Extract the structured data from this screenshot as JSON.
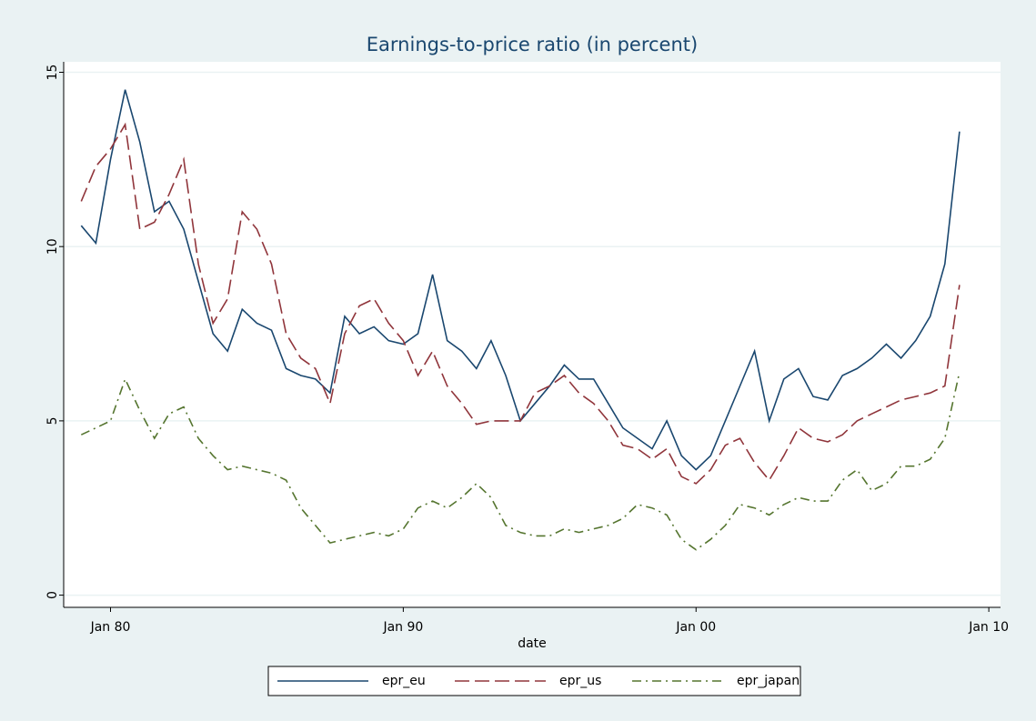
{
  "chart_data": {
    "type": "line",
    "title": "Earnings-to-price ratio (in percent)",
    "x_label": "date",
    "x": [
      1979,
      1979.5,
      1980,
      1980.5,
      1981,
      1981.5,
      1982,
      1982.5,
      1983,
      1983.5,
      1984,
      1984.5,
      1985,
      1985.5,
      1986,
      1986.5,
      1987,
      1987.5,
      1988,
      1988.5,
      1989,
      1989.5,
      1990,
      1990.5,
      1991,
      1991.5,
      1992,
      1992.5,
      1993,
      1993.5,
      1994,
      1994.5,
      1995,
      1995.5,
      1996,
      1996.5,
      1997,
      1997.5,
      1998,
      1998.5,
      1999,
      1999.5,
      2000,
      2000.5,
      2001,
      2001.5,
      2002,
      2002.5,
      2003,
      2003.5,
      2004,
      2004.5,
      2005,
      2005.5,
      2006,
      2006.5,
      2007,
      2007.5,
      2008,
      2008.5,
      2009
    ],
    "series": [
      {
        "name": "epr_eu",
        "color": "#1a476f",
        "style": "solid",
        "values": [
          10.6,
          10.1,
          12.5,
          14.5,
          13.0,
          11.0,
          11.3,
          10.5,
          9.0,
          7.5,
          7.0,
          8.2,
          7.8,
          7.6,
          6.5,
          6.3,
          6.2,
          5.8,
          8.0,
          7.5,
          7.7,
          7.3,
          7.2,
          7.5,
          9.2,
          7.3,
          7.0,
          6.5,
          7.3,
          6.3,
          5.0,
          5.5,
          6.0,
          6.6,
          6.2,
          6.2,
          5.5,
          4.8,
          4.5,
          4.2,
          5.0,
          4.0,
          3.6,
          4.0,
          5.0,
          6.0,
          7.0,
          5.0,
          6.2,
          6.5,
          5.7,
          5.6,
          6.3,
          6.5,
          6.8,
          7.2,
          6.8,
          7.3,
          8.0,
          9.5,
          13.3
        ]
      },
      {
        "name": "epr_us",
        "color": "#90353b",
        "style": "longdash",
        "values": [
          11.3,
          12.3,
          12.8,
          13.5,
          10.5,
          10.7,
          11.5,
          12.5,
          9.5,
          7.8,
          8.5,
          11.0,
          10.5,
          9.5,
          7.5,
          6.8,
          6.5,
          5.5,
          7.5,
          8.3,
          8.5,
          7.8,
          7.3,
          6.3,
          7.0,
          6.0,
          5.5,
          4.9,
          5.0,
          5.0,
          5.0,
          5.8,
          6.0,
          6.3,
          5.8,
          5.5,
          5.0,
          4.3,
          4.2,
          3.9,
          4.2,
          3.4,
          3.2,
          3.6,
          4.3,
          4.5,
          3.8,
          3.3,
          4.0,
          4.8,
          4.5,
          4.4,
          4.6,
          5.0,
          5.2,
          5.4,
          5.6,
          5.7,
          5.8,
          6.0,
          8.9
        ]
      },
      {
        "name": "epr_japan",
        "color": "#55752f",
        "style": "dashdot",
        "values": [
          4.6,
          4.8,
          5.0,
          6.2,
          5.3,
          4.5,
          5.2,
          5.4,
          4.5,
          4.0,
          3.6,
          3.7,
          3.6,
          3.5,
          3.3,
          2.5,
          2.0,
          1.5,
          1.6,
          1.7,
          1.8,
          1.7,
          1.9,
          2.5,
          2.7,
          2.5,
          2.8,
          3.2,
          2.8,
          2.0,
          1.8,
          1.7,
          1.7,
          1.9,
          1.8,
          1.9,
          2.0,
          2.2,
          2.6,
          2.5,
          2.3,
          1.6,
          1.3,
          1.6,
          2.0,
          2.6,
          2.5,
          2.3,
          2.6,
          2.8,
          2.7,
          2.7,
          3.3,
          3.6,
          3.0,
          3.2,
          3.7,
          3.7,
          3.9,
          4.5,
          6.4
        ]
      }
    ],
    "xlim": [
      1978.4,
      2010.4
    ],
    "xticks": [
      {
        "value": 1980,
        "label": "Jan 80"
      },
      {
        "value": 1990,
        "label": "Jan 90"
      },
      {
        "value": 2000,
        "label": "Jan 00"
      },
      {
        "value": 2010,
        "label": "Jan 10"
      }
    ],
    "ylim": [
      -0.35,
      15.3
    ],
    "yticks": [
      0,
      5,
      10,
      15
    ],
    "grid": true,
    "legend_position": "bottom"
  }
}
